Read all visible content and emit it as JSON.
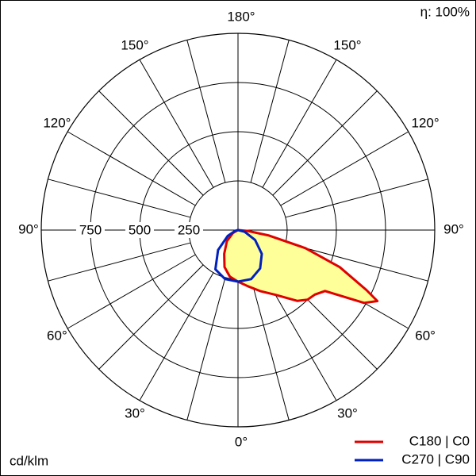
{
  "chart_data": {
    "type": "polar",
    "annotation": "η: 100%",
    "unit_label": "cd/klm",
    "rlim": [
      0,
      1000
    ],
    "rticks": [
      250,
      500,
      750
    ],
    "thetaticks": [
      {
        "value": 0,
        "label": "0°"
      },
      {
        "value": 30,
        "label": "30°"
      },
      {
        "value": 60,
        "label": "60°"
      },
      {
        "value": 90,
        "label": "90°"
      },
      {
        "value": 120,
        "label": "120°"
      },
      {
        "value": 150,
        "label": "150°"
      },
      {
        "value": 180,
        "label": "180°"
      }
    ],
    "series": [
      {
        "name": "C180 | C0",
        "color": "#e00000",
        "fill": "#ffff99",
        "x": [
          -90,
          -60,
          -45,
          -30,
          -20,
          -10,
          0,
          10,
          20,
          30,
          40,
          45,
          50,
          55,
          60,
          63,
          65,
          70,
          75,
          80,
          85,
          90
        ],
        "values": [
          0,
          30,
          80,
          140,
          200,
          240,
          262,
          290,
          330,
          380,
          470,
          500,
          510,
          540,
          740,
          795,
          720,
          550,
          355,
          160,
          50,
          0
        ]
      },
      {
        "name": "C270 | C90",
        "color": "#0020c0",
        "x": [
          -90,
          -75,
          -60,
          -45,
          -30,
          -15,
          0,
          15,
          30,
          45,
          60,
          75,
          90
        ],
        "values": [
          0,
          15,
          60,
          143,
          230,
          257,
          262,
          258,
          225,
          171,
          100,
          35,
          0
        ]
      }
    ]
  }
}
